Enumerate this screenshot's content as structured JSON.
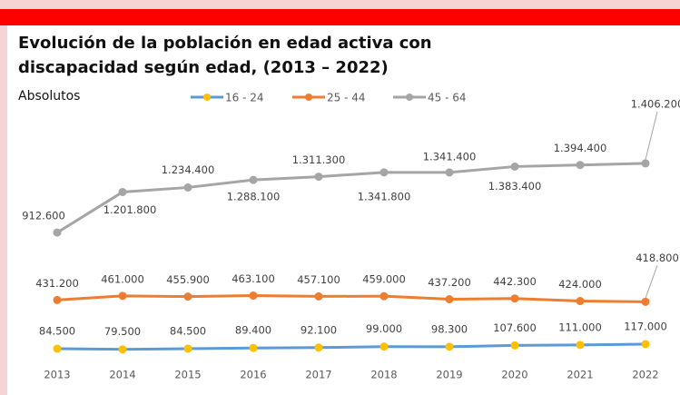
{
  "chart_data": {
    "type": "line",
    "title": "Evolución de la población en edad activa con discapacidad según edad, (2013 – 2022)",
    "title_lines": [
      "Evolución de la población en edad activa con",
      "discapacidad según edad, (2013 – 2022)"
    ],
    "subtitle": "Absolutos",
    "categories": [
      "2013",
      "2014",
      "2015",
      "2016",
      "2017",
      "2018",
      "2019",
      "2020",
      "2021",
      "2022"
    ],
    "ylim": [
      0,
      1600000
    ],
    "series": [
      {
        "name": "16 - 24",
        "color": "#5b9bd5",
        "marker_color": "#ffc000",
        "values": [
          84500,
          79500,
          84500,
          89400,
          92100,
          99000,
          98300,
          107600,
          111000,
          117000
        ],
        "value_labels": [
          "84.500",
          "79.500",
          "84.500",
          "89.400",
          "92.100",
          "99.000",
          "98.300",
          "107.600",
          "111.000",
          "117.000"
        ]
      },
      {
        "name": "25 - 44",
        "color": "#ed7d31",
        "marker_color": "#ed7d31",
        "values": [
          431200,
          461000,
          455900,
          463100,
          457100,
          459000,
          437200,
          442300,
          424000,
          418800
        ],
        "value_labels": [
          "431.200",
          "461.000",
          "455.900",
          "463.100",
          "457.100",
          "459.000",
          "437.200",
          "442.300",
          "424.000",
          "418.800"
        ]
      },
      {
        "name": "45 - 64",
        "color": "#a5a5a5",
        "marker_color": "#a5a5a5",
        "values": [
          912600,
          1201800,
          1234400,
          1288100,
          1311300,
          1341800,
          1341400,
          1383400,
          1394400,
          1406200
        ],
        "value_labels": [
          "912.600",
          "1.201.800",
          "1.234.400",
          "1.288.100",
          "1.311.300",
          "1.341.800",
          "1.341.400",
          "1.383.400",
          "1.394.400",
          "1.406.200"
        ]
      }
    ]
  }
}
